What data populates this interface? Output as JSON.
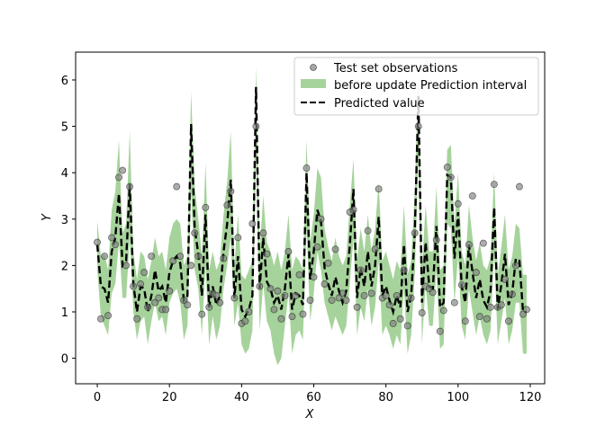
{
  "chart_data": {
    "type": "line",
    "xlabel": "X",
    "ylabel": "Y",
    "xlim": [
      -6,
      124
    ],
    "ylim": [
      -0.55,
      6.6
    ],
    "xticks": [
      0,
      20,
      40,
      60,
      80,
      100,
      120
    ],
    "yticks": [
      0,
      1,
      2,
      3,
      4,
      5,
      6
    ],
    "grid": false,
    "legend_position": "top-right",
    "legend": [
      "Test set observations",
      "before update Prediction interval",
      "Predicted value"
    ],
    "colors": {
      "observations": "#808080",
      "interval": "#a6d39b",
      "predicted": "#000000"
    },
    "x": [
      0,
      1,
      2,
      3,
      4,
      5,
      6,
      7,
      8,
      9,
      10,
      11,
      12,
      13,
      14,
      15,
      16,
      17,
      18,
      19,
      20,
      21,
      22,
      23,
      24,
      25,
      26,
      27,
      28,
      29,
      30,
      31,
      32,
      33,
      34,
      35,
      36,
      37,
      38,
      39,
      40,
      41,
      42,
      43,
      44,
      45,
      46,
      47,
      48,
      49,
      50,
      51,
      52,
      53,
      54,
      55,
      56,
      57,
      58,
      59,
      60,
      61,
      62,
      63,
      64,
      65,
      66,
      67,
      68,
      69,
      70,
      71,
      72,
      73,
      74,
      75,
      76,
      77,
      78,
      79,
      80,
      81,
      82,
      83,
      84,
      85,
      86,
      87,
      88,
      89,
      90,
      91,
      92,
      93,
      94,
      95,
      96,
      97,
      98,
      99,
      100,
      101,
      102,
      103,
      104,
      105,
      106,
      107,
      108,
      109,
      110,
      111,
      112,
      113,
      114,
      115,
      116,
      117,
      118,
      119
    ],
    "series": [
      {
        "type": "scatter",
        "name": "Test set observations",
        "x": [
          0,
          1,
          2,
          3,
          4,
          5,
          6,
          7,
          8,
          9,
          10,
          11,
          12,
          13,
          14,
          15,
          16,
          17,
          18,
          19,
          20,
          21,
          22,
          23,
          24,
          25,
          26,
          27,
          28,
          29,
          30,
          31,
          32,
          33,
          34,
          35,
          36,
          37,
          38,
          39,
          40,
          41,
          42,
          43,
          44,
          45,
          46,
          47,
          48,
          49,
          50,
          51,
          52,
          53,
          54,
          55,
          56,
          57,
          58,
          59,
          60,
          61,
          62,
          63,
          64,
          65,
          66,
          67,
          68,
          69,
          70,
          71,
          72,
          73,
          74,
          75,
          76,
          77,
          78,
          79,
          80,
          81,
          82,
          83,
          84,
          85,
          86,
          87,
          88,
          89,
          90,
          91,
          92,
          93,
          94,
          95,
          96,
          97,
          98,
          99,
          100,
          101,
          102,
          103,
          104,
          105,
          106,
          107,
          108,
          109,
          110,
          111,
          112,
          113,
          114,
          115,
          116,
          117,
          118,
          119
        ],
        "values": [
          2.5,
          0.85,
          2.2,
          0.92,
          2.6,
          2.45,
          3.9,
          4.05,
          2.0,
          3.7,
          1.55,
          0.85,
          1.6,
          1.85,
          1.1,
          2.2,
          1.2,
          1.3,
          1.05,
          1.05,
          1.45,
          2.1,
          3.7,
          2.2,
          1.25,
          1.15,
          2.0,
          2.7,
          2.2,
          0.95,
          3.25,
          1.1,
          1.4,
          1.35,
          1.2,
          2.15,
          3.3,
          3.6,
          1.3,
          2.6,
          0.75,
          0.8,
          1.0,
          2.9,
          5.0,
          1.55,
          2.7,
          2.25,
          1.5,
          1.05,
          1.45,
          0.85,
          1.35,
          2.3,
          0.9,
          1.35,
          1.8,
          0.95,
          4.1,
          1.25,
          1.75,
          2.4,
          3.0,
          1.6,
          2.05,
          1.25,
          2.35,
          1.3,
          1.4,
          1.25,
          3.15,
          3.2,
          1.1,
          1.9,
          1.35,
          2.75,
          1.4,
          2.35,
          3.65,
          1.3,
          1.35,
          1.15,
          0.75,
          1.35,
          0.85,
          1.9,
          0.7,
          1.3,
          2.7,
          5.0,
          0.98,
          1.55,
          1.5,
          1.42,
          2.55,
          0.58,
          1.03,
          4.12,
          3.9,
          1.2,
          3.33,
          1.58,
          0.8,
          2.45,
          3.5,
          1.85,
          0.9,
          2.48,
          0.85,
          1.1,
          3.75,
          1.1,
          1.15,
          1.7,
          0.8,
          1.38,
          2.0,
          3.7,
          0.95,
          1.05
        ]
      },
      {
        "type": "line",
        "name": "Predicted value",
        "style": "dashed",
        "values": [
          2.45,
          1.55,
          1.5,
          1.2,
          2.3,
          2.6,
          3.55,
          2.0,
          2.1,
          3.75,
          1.6,
          1.0,
          1.55,
          1.5,
          1.0,
          1.35,
          1.9,
          1.45,
          1.55,
          1.2,
          1.85,
          2.1,
          2.2,
          2.05,
          1.25,
          1.35,
          5.05,
          2.8,
          2.25,
          1.35,
          3.1,
          1.1,
          1.55,
          1.15,
          1.35,
          2.3,
          2.9,
          3.85,
          1.3,
          2.2,
          1.05,
          0.9,
          1.05,
          1.35,
          5.85,
          1.5,
          2.6,
          1.65,
          1.5,
          1.2,
          1.35,
          1.05,
          1.5,
          2.25,
          1.05,
          1.4,
          1.35,
          1.15,
          4.0,
          1.7,
          2.3,
          3.2,
          2.95,
          1.95,
          1.6,
          1.35,
          1.75,
          1.45,
          1.2,
          1.45,
          2.45,
          3.65,
          1.3,
          1.95,
          1.55,
          2.3,
          1.55,
          2.0,
          3.05,
          1.35,
          1.55,
          1.25,
          1.0,
          1.35,
          1.1,
          2.45,
          1.0,
          1.35,
          2.7,
          5.65,
          1.2,
          2.5,
          1.55,
          1.5,
          2.85,
          1.1,
          1.2,
          3.95,
          3.9,
          2.15,
          3.15,
          1.55,
          1.2,
          2.45,
          1.85,
          1.3,
          1.7,
          1.25,
          1.1,
          1.45,
          3.25,
          1.05,
          1.6,
          2.25,
          1.15,
          1.4,
          2.15,
          2.1,
          1.0,
          1.0
        ]
      },
      {
        "type": "area",
        "name": "before update Prediction interval",
        "lower": [
          1.9,
          0.9,
          0.7,
          0.5,
          1.4,
          1.6,
          2.5,
          1.3,
          1.3,
          2.6,
          1.0,
          0.4,
          0.8,
          0.9,
          0.3,
          0.8,
          1.2,
          0.8,
          0.9,
          0.5,
          1.2,
          1.4,
          1.5,
          1.2,
          0.4,
          0.7,
          3.6,
          1.9,
          1.5,
          0.5,
          2.0,
          0.3,
          0.9,
          0.4,
          0.7,
          1.5,
          2.0,
          2.6,
          0.7,
          1.2,
          0.3,
          0.1,
          0.2,
          0.6,
          4.4,
          0.6,
          1.6,
          0.8,
          0.6,
          0.1,
          -0.15,
          0.0,
          0.7,
          1.4,
          0.1,
          0.5,
          0.6,
          0.4,
          2.8,
          0.8,
          1.4,
          2.3,
          1.9,
          1.2,
          0.9,
          0.6,
          0.9,
          0.7,
          0.5,
          0.7,
          1.6,
          2.6,
          0.5,
          1.1,
          0.8,
          1.5,
          0.7,
          1.1,
          2.1,
          0.5,
          0.7,
          0.5,
          0.2,
          0.5,
          0.3,
          1.5,
          0.1,
          0.5,
          1.8,
          4.4,
          0.3,
          1.6,
          0.7,
          0.7,
          1.9,
          0.2,
          0.3,
          2.9,
          2.8,
          1.2,
          2.2,
          0.7,
          0.4,
          1.5,
          1.0,
          0.5,
          0.9,
          0.5,
          0.3,
          0.6,
          2.3,
          0.3,
          0.8,
          1.3,
          0.3,
          0.6,
          1.2,
          1.2,
          0.1,
          0.1
        ],
        "upper": [
          2.95,
          2.2,
          2.25,
          1.9,
          3.2,
          3.6,
          4.7,
          2.7,
          2.9,
          4.9,
          2.3,
          1.7,
          2.3,
          2.2,
          1.7,
          2.1,
          2.6,
          2.2,
          2.3,
          1.9,
          2.6,
          2.9,
          3.0,
          2.9,
          2.0,
          2.2,
          5.75,
          3.7,
          3.0,
          2.2,
          4.2,
          1.9,
          2.3,
          1.9,
          2.1,
          3.1,
          3.8,
          4.9,
          2.0,
          3.1,
          1.8,
          1.7,
          1.9,
          2.1,
          6.3,
          2.3,
          3.5,
          2.5,
          2.3,
          2.0,
          2.3,
          1.9,
          2.3,
          3.1,
          1.9,
          2.2,
          2.1,
          1.9,
          4.7,
          2.5,
          3.1,
          4.1,
          3.9,
          2.8,
          2.4,
          2.1,
          2.6,
          2.2,
          2.0,
          2.2,
          3.3,
          4.3,
          2.1,
          2.8,
          2.3,
          3.1,
          2.3,
          2.8,
          3.8,
          2.1,
          2.3,
          2.0,
          1.7,
          2.1,
          1.9,
          3.3,
          1.8,
          2.1,
          3.6,
          6.1,
          2.0,
          3.3,
          2.3,
          2.3,
          3.7,
          1.9,
          2.0,
          4.5,
          4.6,
          2.9,
          4.0,
          2.3,
          2.0,
          3.3,
          2.6,
          2.1,
          2.5,
          2.0,
          1.9,
          2.2,
          4.0,
          1.8,
          2.4,
          3.1,
          1.9,
          2.2,
          2.9,
          2.8,
          1.8,
          1.8
        ]
      }
    ]
  }
}
